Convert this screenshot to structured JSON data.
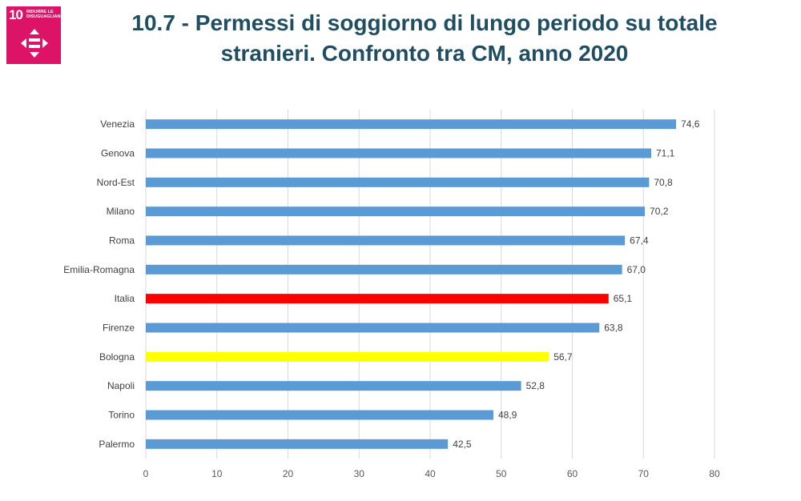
{
  "badge": {
    "number": "10",
    "text": "RIDURRE LE DISUGUAGLIANZE",
    "color": "#dd1367",
    "icon": "equality-arrows-icon"
  },
  "title": {
    "line1": "10.7 - Permessi di soggiorno di lungo periodo su totale",
    "line2": "stranieri. Confronto tra CM, anno 2020"
  },
  "chart_data": {
    "type": "bar",
    "orientation": "horizontal",
    "categories": [
      "Venezia",
      "Genova",
      "Nord-Est",
      "Milano",
      "Roma",
      "Emilia-Romagna",
      "Italia",
      "Firenze",
      "Bologna",
      "Napoli",
      "Torino",
      "Palermo"
    ],
    "values": [
      74.6,
      71.1,
      70.8,
      70.2,
      67.4,
      67.0,
      65.1,
      63.8,
      56.7,
      52.8,
      48.9,
      42.5
    ],
    "value_labels": [
      "74,6",
      "71,1",
      "70,8",
      "70,2",
      "67,4",
      "67,0",
      "65,1",
      "63,8",
      "56,7",
      "52,8",
      "48,9",
      "42,5"
    ],
    "colors": [
      "#5b9bd5",
      "#5b9bd5",
      "#5b9bd5",
      "#5b9bd5",
      "#5b9bd5",
      "#5b9bd5",
      "#ff0000",
      "#5b9bd5",
      "#ffff00",
      "#5b9bd5",
      "#5b9bd5",
      "#5b9bd5"
    ],
    "xlim": [
      0,
      80
    ],
    "xticks": [
      0,
      10,
      20,
      30,
      40,
      50,
      60,
      70,
      80
    ],
    "grid": "vertical",
    "legend": "none"
  }
}
